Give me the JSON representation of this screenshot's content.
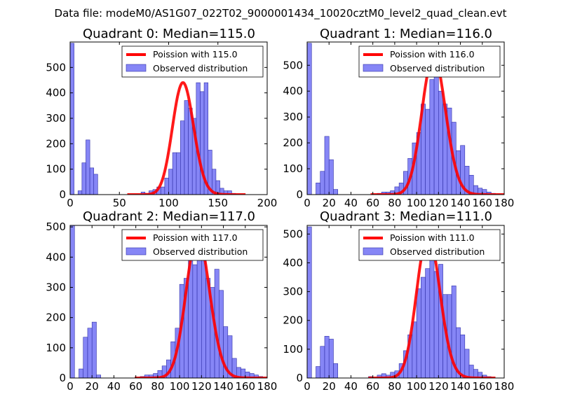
{
  "figure": {
    "suptitle": "Data file: modeM0/AS1G07_022T02_9000001434_10020cztM0_level2_quad_clean.evt"
  },
  "chart_data": [
    {
      "type": "bar",
      "title": "Quadrant 0: Median=115.0",
      "median": 115.0,
      "xlim": [
        0,
        200
      ],
      "ylim": [
        0,
        600
      ],
      "xticks": [
        0,
        50,
        100,
        150,
        200
      ],
      "yticks": [
        0,
        100,
        200,
        300,
        400,
        500
      ],
      "bin_width": 4,
      "bins": [
        [
          0,
          595
        ],
        [
          8,
          15
        ],
        [
          12,
          125
        ],
        [
          16,
          215
        ],
        [
          20,
          105
        ],
        [
          24,
          80
        ],
        [
          72,
          10
        ],
        [
          76,
          5
        ],
        [
          80,
          15
        ],
        [
          84,
          20
        ],
        [
          88,
          30
        ],
        [
          92,
          30
        ],
        [
          96,
          65
        ],
        [
          100,
          100
        ],
        [
          104,
          165
        ],
        [
          108,
          165
        ],
        [
          112,
          290
        ],
        [
          116,
          370
        ],
        [
          120,
          340
        ],
        [
          124,
          300
        ],
        [
          128,
          440
        ],
        [
          132,
          405
        ],
        [
          136,
          440
        ],
        [
          140,
          175
        ],
        [
          144,
          100
        ],
        [
          148,
          55
        ],
        [
          152,
          25
        ],
        [
          156,
          15
        ],
        [
          160,
          15
        ],
        [
          164,
          5
        ]
      ],
      "legend": {
        "curve": "Poission with 115.0",
        "bars": "Observed distribution"
      }
    },
    {
      "type": "bar",
      "title": "Quadrant 1: Median=116.0",
      "median": 116.0,
      "xlim": [
        0,
        180
      ],
      "ylim": [
        0,
        590
      ],
      "xticks": [
        0,
        20,
        40,
        60,
        80,
        100,
        120,
        140,
        160,
        180
      ],
      "yticks": [
        0,
        100,
        200,
        300,
        400,
        500
      ],
      "bin_width": 4,
      "bins": [
        [
          0,
          585
        ],
        [
          8,
          45
        ],
        [
          12,
          90
        ],
        [
          16,
          225
        ],
        [
          20,
          135
        ],
        [
          24,
          20
        ],
        [
          64,
          5
        ],
        [
          68,
          10
        ],
        [
          72,
          10
        ],
        [
          76,
          15
        ],
        [
          80,
          30
        ],
        [
          84,
          45
        ],
        [
          88,
          90
        ],
        [
          92,
          140
        ],
        [
          96,
          200
        ],
        [
          100,
          240
        ],
        [
          104,
          350
        ],
        [
          108,
          330
        ],
        [
          112,
          445
        ],
        [
          116,
          535
        ],
        [
          120,
          400
        ],
        [
          124,
          350
        ],
        [
          128,
          335
        ],
        [
          132,
          280
        ],
        [
          136,
          170
        ],
        [
          140,
          190
        ],
        [
          144,
          110
        ],
        [
          148,
          75
        ],
        [
          152,
          35
        ],
        [
          156,
          25
        ],
        [
          160,
          20
        ],
        [
          164,
          10
        ],
        [
          168,
          5
        ]
      ],
      "legend": {
        "curve": "Poission with 116.0",
        "bars": "Observed distribution"
      }
    },
    {
      "type": "bar",
      "title": "Quadrant 2: Median=117.0",
      "median": 117.0,
      "xlim": [
        0,
        180
      ],
      "ylim": [
        0,
        505
      ],
      "xticks": [
        0,
        20,
        40,
        60,
        80,
        100,
        120,
        140,
        160,
        180
      ],
      "yticks": [
        0,
        100,
        200,
        300,
        400,
        500
      ],
      "bin_width": 4,
      "bins": [
        [
          0,
          505
        ],
        [
          8,
          30
        ],
        [
          12,
          135
        ],
        [
          16,
          165
        ],
        [
          20,
          185
        ],
        [
          24,
          10
        ],
        [
          64,
          5
        ],
        [
          68,
          10
        ],
        [
          72,
          10
        ],
        [
          76,
          15
        ],
        [
          80,
          25
        ],
        [
          84,
          40
        ],
        [
          88,
          60
        ],
        [
          92,
          120
        ],
        [
          96,
          165
        ],
        [
          100,
          310
        ],
        [
          104,
          330
        ],
        [
          108,
          390
        ],
        [
          112,
          375
        ],
        [
          116,
          470
        ],
        [
          120,
          410
        ],
        [
          124,
          330
        ],
        [
          128,
          300
        ],
        [
          132,
          360
        ],
        [
          136,
          290
        ],
        [
          140,
          170
        ],
        [
          144,
          140
        ],
        [
          148,
          65
        ],
        [
          152,
          35
        ],
        [
          156,
          30
        ],
        [
          160,
          20
        ],
        [
          164,
          15
        ],
        [
          168,
          10
        ],
        [
          172,
          5
        ]
      ],
      "legend": {
        "curve": "Poission with 117.0",
        "bars": "Observed distribution"
      }
    },
    {
      "type": "bar",
      "title": "Quadrant 3: Median=111.0",
      "median": 111.0,
      "xlim": [
        0,
        180
      ],
      "ylim": [
        0,
        530
      ],
      "xticks": [
        0,
        20,
        40,
        60,
        80,
        100,
        120,
        140,
        160,
        180
      ],
      "yticks": [
        0,
        100,
        200,
        300,
        400,
        500
      ],
      "bin_width": 4,
      "bins": [
        [
          0,
          525
        ],
        [
          8,
          40
        ],
        [
          12,
          110
        ],
        [
          16,
          145
        ],
        [
          20,
          135
        ],
        [
          24,
          50
        ],
        [
          56,
          5
        ],
        [
          64,
          10
        ],
        [
          68,
          15
        ],
        [
          72,
          10
        ],
        [
          76,
          20
        ],
        [
          80,
          25
        ],
        [
          84,
          50
        ],
        [
          88,
          95
        ],
        [
          92,
          150
        ],
        [
          96,
          195
        ],
        [
          100,
          310
        ],
        [
          104,
          350
        ],
        [
          108,
          380
        ],
        [
          112,
          500
        ],
        [
          116,
          370
        ],
        [
          120,
          395
        ],
        [
          124,
          290
        ],
        [
          128,
          290
        ],
        [
          132,
          320
        ],
        [
          136,
          175
        ],
        [
          140,
          150
        ],
        [
          144,
          100
        ],
        [
          148,
          45
        ],
        [
          152,
          30
        ],
        [
          156,
          20
        ],
        [
          160,
          10
        ],
        [
          164,
          5
        ]
      ],
      "legend": {
        "curve": "Poission with 111.0",
        "bars": "Observed distribution"
      }
    }
  ]
}
